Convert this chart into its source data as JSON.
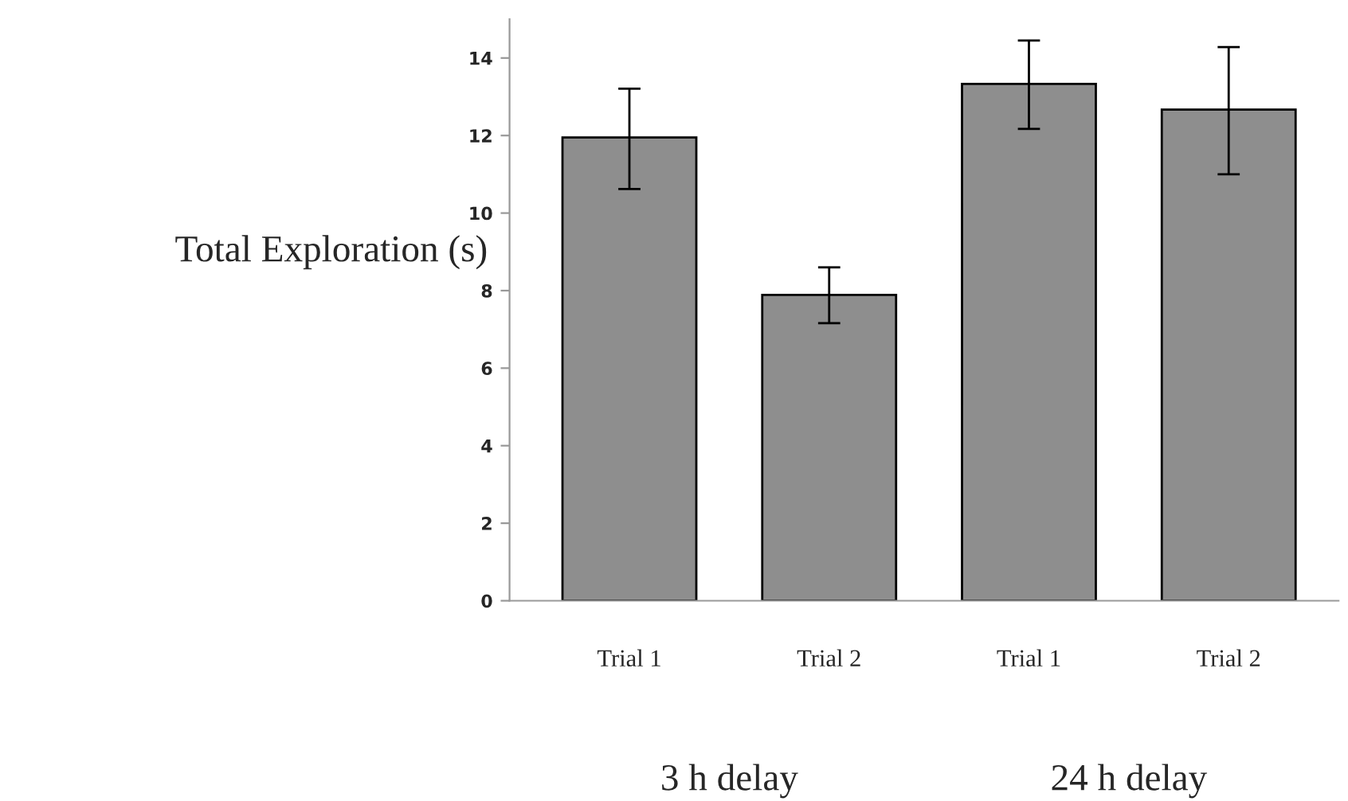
{
  "chart_data": {
    "type": "bar",
    "ylabel": "Total Exploration (s)",
    "categories": [
      "Trial 1",
      "Trial 2",
      "Trial 1",
      "Trial 2"
    ],
    "values": [
      11.95,
      7.89,
      13.33,
      12.67
    ],
    "errors": [
      [
        10.62,
        13.21
      ],
      [
        7.16,
        8.6
      ],
      [
        12.17,
        14.45
      ],
      [
        11.0,
        14.28
      ]
    ],
    "color": "#8e8e8e",
    "ylim": [
      0,
      15
    ],
    "yticks": [
      0,
      2,
      4,
      6,
      8,
      10,
      12,
      14
    ],
    "grid": false,
    "legend": false,
    "annotations": [
      "3 h delay",
      "24 h delay"
    ]
  }
}
